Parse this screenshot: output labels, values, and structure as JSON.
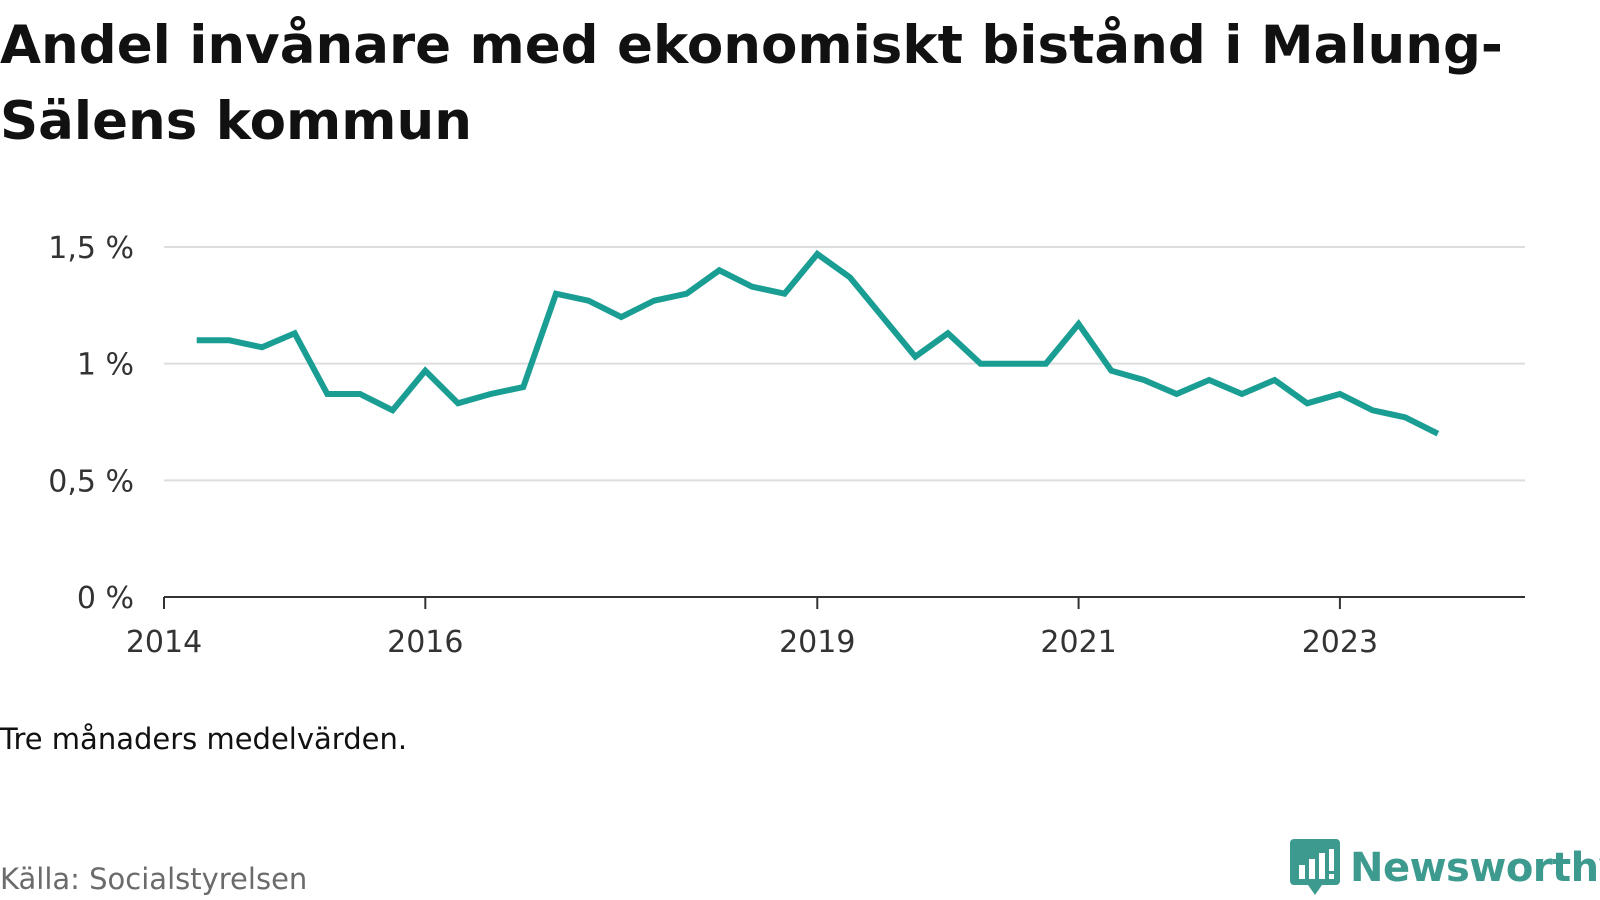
{
  "title": "Andel invånare med ekonomiskt bistånd i Malung-Sälens kommun",
  "note": "Tre månaders medelvärden.",
  "source": "Källa: Socialstyrelsen",
  "brand": "Newsworthy",
  "colors": {
    "line": "#1a9e94",
    "grid": "#dddddd",
    "axis": "#333333",
    "brand": "#3d9a8f",
    "source": "#6b6b6b"
  },
  "chart_data": {
    "type": "line",
    "title": "Andel invånare med ekonomiskt bistånd i Malung-Sälens kommun",
    "xlabel": "",
    "ylabel": "",
    "ylim": [
      0,
      1.5
    ],
    "xlim": [
      "2014-01",
      "2024-06"
    ],
    "yticks": [
      0,
      0.5,
      1,
      1.5
    ],
    "ytick_labels": [
      "0 %",
      "0,5 %",
      "1 %",
      "1,5 %"
    ],
    "xticks": [
      "2014-01",
      "2016-01",
      "2019-01",
      "2021-01",
      "2023-01"
    ],
    "xtick_labels": [
      "2014",
      "2016",
      "2019",
      "2021",
      "2023"
    ],
    "grid": true,
    "legend": "none",
    "x": [
      "2014-04",
      "2014-07",
      "2014-10",
      "2015-01",
      "2015-04",
      "2015-07",
      "2015-10",
      "2016-01",
      "2016-04",
      "2016-07",
      "2016-10",
      "2017-01",
      "2017-04",
      "2017-07",
      "2017-10",
      "2018-01",
      "2018-04",
      "2018-07",
      "2018-10",
      "2019-01",
      "2019-04",
      "2019-07",
      "2019-10",
      "2020-01",
      "2020-04",
      "2020-07",
      "2020-10",
      "2021-01",
      "2021-04",
      "2021-07",
      "2021-10",
      "2022-01",
      "2022-04",
      "2022-07",
      "2022-10",
      "2023-01",
      "2023-04",
      "2023-07",
      "2023-10"
    ],
    "series": [
      {
        "values": [
          1.1,
          1.1,
          1.07,
          1.13,
          0.87,
          0.87,
          0.8,
          0.97,
          0.83,
          0.87,
          0.9,
          1.3,
          1.27,
          1.2,
          1.27,
          1.3,
          1.4,
          1.33,
          1.3,
          1.47,
          1.37,
          1.2,
          1.03,
          1.13,
          1.0,
          1.0,
          1.0,
          1.17,
          0.97,
          0.93,
          0.87,
          0.93,
          0.87,
          0.93,
          0.83,
          0.87,
          0.8,
          0.77,
          0.7
        ]
      }
    ]
  }
}
